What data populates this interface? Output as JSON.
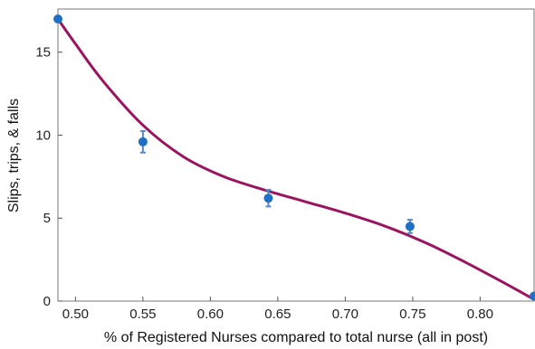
{
  "chart_data": {
    "type": "scatter",
    "title": "",
    "xlabel": "% of Registered Nurses compared to total nurse (all in post)",
    "ylabel": "Slips, trips, & falls",
    "xlim": [
      0.487,
      0.84
    ],
    "ylim": [
      0,
      17.6
    ],
    "x_ticks": [
      0.5,
      0.55,
      0.6,
      0.65,
      0.7,
      0.75,
      0.8
    ],
    "x_tick_labels": [
      "0.50",
      "0.55",
      "0.60",
      "0.65",
      "0.70",
      "0.75",
      "0.80"
    ],
    "y_ticks": [
      0,
      5,
      10,
      15
    ],
    "y_tick_labels": [
      "0",
      "5",
      "10",
      "15"
    ],
    "grid": false,
    "series": [
      {
        "kind": "points-with-error-bars",
        "x": [
          0.487,
          0.55,
          0.643,
          0.748,
          0.84
        ],
        "y": [
          17.0,
          9.6,
          6.2,
          4.5,
          0.3
        ],
        "err": [
          0.1,
          0.65,
          0.5,
          0.4,
          0.1
        ]
      },
      {
        "kind": "fit-curve",
        "x": [
          0.487,
          0.5,
          0.52,
          0.55,
          0.58,
          0.61,
          0.64,
          0.67,
          0.7,
          0.73,
          0.76,
          0.79,
          0.82,
          0.84
        ],
        "y": [
          17.0,
          15.5,
          13.3,
          10.6,
          8.7,
          7.5,
          6.7,
          6.0,
          5.3,
          4.5,
          3.5,
          2.3,
          1.0,
          0.1
        ]
      }
    ],
    "colors": {
      "points": "#1f6fc5",
      "error_bars": "#5b86c4",
      "curve": "#9b1460",
      "axes": "#555555"
    }
  }
}
